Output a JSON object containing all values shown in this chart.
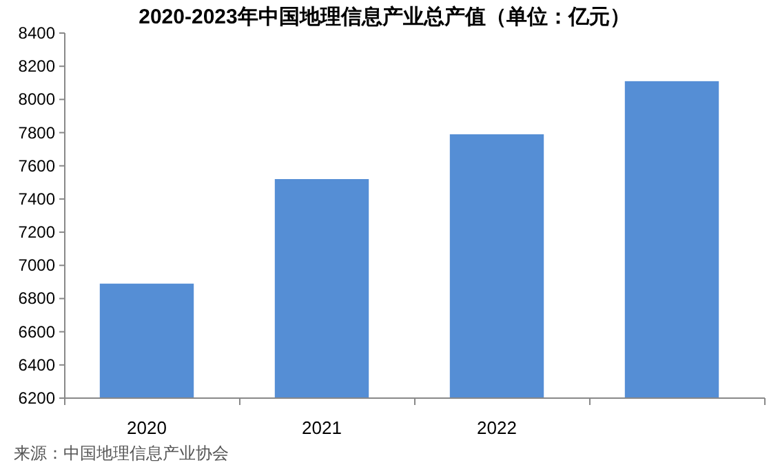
{
  "chart_data": {
    "type": "bar",
    "title": "2020-2023年中国地理信息产业总产值（单位：亿元）",
    "categories": [
      "2020",
      "2021",
      "2022",
      null
    ],
    "values": [
      6890,
      7520,
      7790,
      8110
    ],
    "color": "#558ed5",
    "ylim": [
      6200,
      8400
    ],
    "yticks": [
      6200,
      6400,
      6600,
      6800,
      7000,
      7200,
      7400,
      7600,
      7800,
      8000,
      8200,
      8400
    ],
    "grid": false,
    "annotations": [
      "来源：中国地理信息产业协会"
    ]
  }
}
